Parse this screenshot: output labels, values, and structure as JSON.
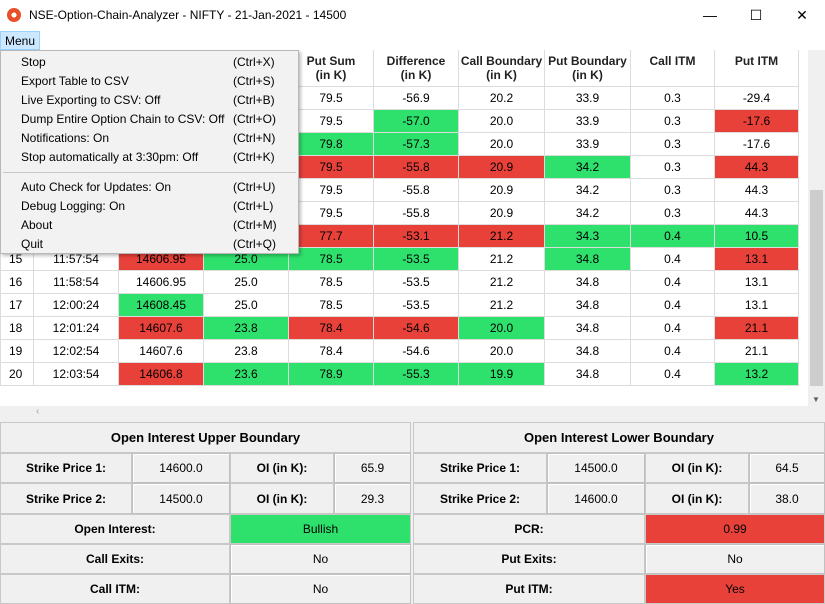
{
  "window": {
    "title": "NSE-Option-Chain-Analyzer - NIFTY - 21-Jan-2021 - 14500",
    "minimize": "—",
    "maximize": "☐",
    "close": "✕"
  },
  "menubar": {
    "menu_label": "Menu"
  },
  "menu": {
    "group1": [
      {
        "label": "Stop",
        "shortcut": "(Ctrl+X)"
      },
      {
        "label": "Export Table to CSV",
        "shortcut": "(Ctrl+S)"
      },
      {
        "label": "Live Exporting to CSV: Off",
        "shortcut": "(Ctrl+B)"
      },
      {
        "label": "Dump Entire Option Chain to CSV: Off",
        "shortcut": "(Ctrl+O)"
      },
      {
        "label": "Notifications: On",
        "shortcut": "(Ctrl+N)"
      },
      {
        "label": "Stop automatically at 3:30pm: Off",
        "shortcut": "(Ctrl+K)"
      }
    ],
    "group2": [
      {
        "label": "Auto Check for Updates: On",
        "shortcut": "(Ctrl+U)"
      },
      {
        "label": "Debug Logging: On",
        "shortcut": "(Ctrl+L)"
      },
      {
        "label": "About",
        "shortcut": "(Ctrl+M)"
      },
      {
        "label": "Quit",
        "shortcut": "(Ctrl+Q)"
      }
    ]
  },
  "table": {
    "headers": {
      "put_sum": [
        "Put Sum",
        "(in K)"
      ],
      "difference": [
        "Difference",
        "(in K)"
      ],
      "call_boundary": [
        "Call Boundary",
        "(in K)"
      ],
      "put_boundary": [
        "Put Boundary",
        "(in K)"
      ],
      "call_itm": [
        "Call ITM",
        ""
      ],
      "put_itm": [
        "Put ITM",
        ""
      ]
    },
    "rows": [
      {
        "idx": "",
        "time": "",
        "ltp": "",
        "call_sum": "",
        "put_sum": "79.5",
        "diff": "-56.9",
        "call_b": "20.2",
        "put_b": "33.9",
        "call_itm": "0.3",
        "put_itm": "-29.4"
      },
      {
        "idx": "",
        "time": "",
        "ltp": "",
        "call_sum": "",
        "put_sum": "79.5",
        "diff": "-57.0",
        "call_b": "20.0",
        "put_b": "33.9",
        "call_itm": "0.3",
        "put_itm": "-17.6"
      },
      {
        "idx": "",
        "time": "",
        "ltp": "",
        "call_sum": "",
        "put_sum": "79.8",
        "diff": "-57.3",
        "call_b": "20.0",
        "put_b": "33.9",
        "call_itm": "0.3",
        "put_itm": "-17.6"
      },
      {
        "idx": "",
        "time": "",
        "ltp": "",
        "call_sum": "",
        "put_sum": "79.5",
        "diff": "-55.8",
        "call_b": "20.9",
        "put_b": "34.2",
        "call_itm": "0.3",
        "put_itm": "44.3"
      },
      {
        "idx": "",
        "time": "",
        "ltp": "",
        "call_sum": "",
        "put_sum": "79.5",
        "diff": "-55.8",
        "call_b": "20.9",
        "put_b": "34.2",
        "call_itm": "0.3",
        "put_itm": "44.3"
      },
      {
        "idx": "",
        "time": "",
        "ltp": "",
        "call_sum": "",
        "put_sum": "79.5",
        "diff": "-55.8",
        "call_b": "20.9",
        "put_b": "34.2",
        "call_itm": "0.3",
        "put_itm": "44.3"
      },
      {
        "idx": "",
        "time": "",
        "ltp": "",
        "call_sum": "",
        "put_sum": "77.7",
        "diff": "-53.1",
        "call_b": "21.2",
        "put_b": "34.3",
        "call_itm": "0.4",
        "put_itm": "10.5"
      },
      {
        "idx": "15",
        "time": "11:57:54",
        "ltp": "14606.95",
        "call_sum": "25.0",
        "put_sum": "78.5",
        "diff": "-53.5",
        "call_b": "21.2",
        "put_b": "34.8",
        "call_itm": "0.4",
        "put_itm": "13.1"
      },
      {
        "idx": "16",
        "time": "11:58:54",
        "ltp": "14606.95",
        "call_sum": "25.0",
        "put_sum": "78.5",
        "diff": "-53.5",
        "call_b": "21.2",
        "put_b": "34.8",
        "call_itm": "0.4",
        "put_itm": "13.1"
      },
      {
        "idx": "17",
        "time": "12:00:24",
        "ltp": "14608.45",
        "call_sum": "25.0",
        "put_sum": "78.5",
        "diff": "-53.5",
        "call_b": "21.2",
        "put_b": "34.8",
        "call_itm": "0.4",
        "put_itm": "13.1"
      },
      {
        "idx": "18",
        "time": "12:01:24",
        "ltp": "14607.6",
        "call_sum": "23.8",
        "put_sum": "78.4",
        "diff": "-54.6",
        "call_b": "20.0",
        "put_b": "34.8",
        "call_itm": "0.4",
        "put_itm": "21.1"
      },
      {
        "idx": "19",
        "time": "12:02:54",
        "ltp": "14607.6",
        "call_sum": "23.8",
        "put_sum": "78.4",
        "diff": "-54.6",
        "call_b": "20.0",
        "put_b": "34.8",
        "call_itm": "0.4",
        "put_itm": "21.1"
      },
      {
        "idx": "20",
        "time": "12:03:54",
        "ltp": "14606.8",
        "call_sum": "23.6",
        "put_sum": "78.9",
        "diff": "-55.3",
        "call_b": "19.9",
        "put_b": "34.8",
        "call_itm": "0.4",
        "put_itm": "13.2"
      }
    ],
    "colors": {
      "green": "#2ee06c",
      "red": "#e8413a"
    }
  },
  "upper": {
    "header": "Open Interest Upper Boundary",
    "strike1_label": "Strike Price 1:",
    "strike1_value": "14600.0",
    "oi1_label": "OI (in K):",
    "oi1_value": "65.9",
    "strike2_label": "Strike Price 2:",
    "strike2_value": "14500.0",
    "oi2_label": "OI (in K):",
    "oi2_value": "29.3"
  },
  "lower": {
    "header": "Open Interest Lower Boundary",
    "strike1_label": "Strike Price 1:",
    "strike1_value": "14500.0",
    "oi1_label": "OI (in K):",
    "oi1_value": "64.5",
    "strike2_label": "Strike Price 2:",
    "strike2_value": "14600.0",
    "oi2_label": "OI (in K):",
    "oi2_value": "38.0"
  },
  "summary": {
    "open_interest_label": "Open Interest:",
    "open_interest_value": "Bullish",
    "pcr_label": "PCR:",
    "pcr_value": "0.99",
    "call_exits_label": "Call Exits:",
    "call_exits_value": "No",
    "put_exits_label": "Put Exits:",
    "put_exits_value": "No",
    "call_itm_label": "Call ITM:",
    "call_itm_value": "No",
    "put_itm_label": "Put ITM:",
    "put_itm_value": "Yes"
  }
}
